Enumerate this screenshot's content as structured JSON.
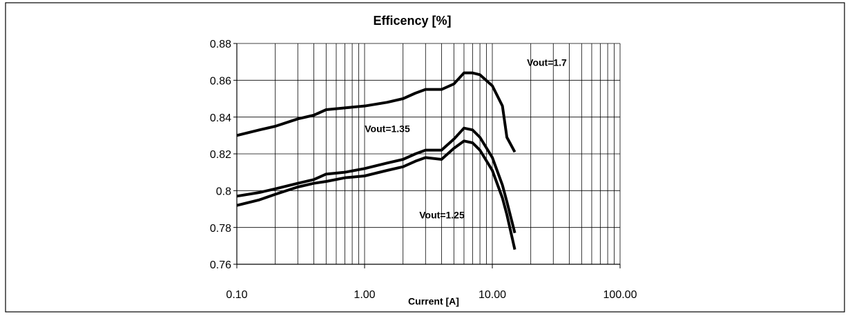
{
  "chart_data": {
    "type": "line",
    "title": "Efficency [%]",
    "x_label": "Current [A]",
    "x": [
      0.1,
      0.15,
      0.2,
      0.3,
      0.4,
      0.5,
      0.7,
      1,
      1.5,
      2,
      2.5,
      3,
      4,
      5,
      6,
      7,
      8,
      10,
      12,
      13,
      15
    ],
    "series": [
      {
        "name": "Vout=1.7",
        "color": "#000000",
        "values": [
          0.83,
          0.833,
          0.835,
          0.839,
          0.841,
          0.844,
          0.845,
          0.846,
          0.848,
          0.85,
          0.853,
          0.855,
          0.855,
          0.858,
          0.864,
          0.864,
          0.863,
          0.857,
          0.846,
          0.829,
          0.821
        ]
      },
      {
        "name": "Vout=1.35",
        "color": "#000000",
        "values": [
          0.797,
          0.799,
          0.801,
          0.804,
          0.806,
          0.809,
          0.81,
          0.812,
          0.815,
          0.817,
          0.82,
          0.822,
          0.822,
          0.828,
          0.834,
          0.833,
          0.829,
          0.818,
          0.803,
          0.794,
          0.777
        ]
      },
      {
        "name": "Vout=1.25",
        "color": "#000000",
        "values": [
          0.792,
          0.795,
          0.798,
          0.802,
          0.804,
          0.805,
          0.807,
          0.808,
          0.811,
          0.813,
          0.816,
          0.818,
          0.817,
          0.823,
          0.827,
          0.826,
          0.822,
          0.811,
          0.796,
          0.787,
          0.768
        ]
      }
    ],
    "x_log": true,
    "minor_grid": true,
    "grid": true,
    "xlim": [
      0.1,
      100
    ],
    "xticks": [
      {
        "value": 0.1,
        "label": "0.10"
      },
      {
        "value": 1,
        "label": "1.00"
      },
      {
        "value": 10,
        "label": "10.00"
      },
      {
        "value": 100,
        "label": "100.00"
      }
    ],
    "ylim": [
      0.76,
      0.88
    ],
    "yticks": [
      0.76,
      0.78,
      0.8,
      0.82,
      0.84,
      0.86,
      0.88
    ]
  }
}
